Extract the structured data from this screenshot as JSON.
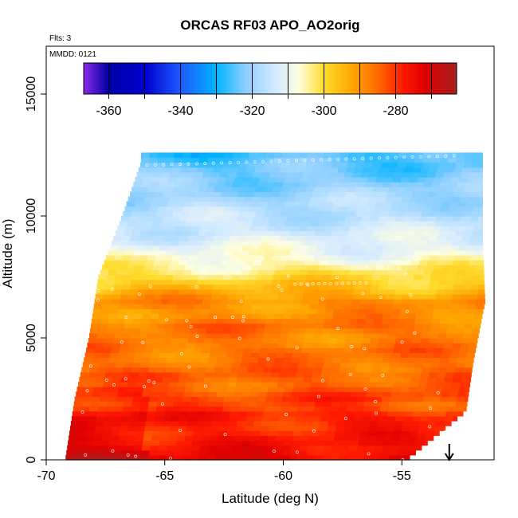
{
  "chart_data": {
    "type": "heatmap",
    "title": "ORCAS RF03 APO_AO2orig",
    "xlabel": "Latitude (deg N)",
    "ylabel": "Altitude (m)",
    "xlim": [
      -70,
      -50
    ],
    "ylim": [
      0,
      16500
    ],
    "x_ticks": [
      -70,
      -65,
      -60,
      -55
    ],
    "y_ticks": [
      0,
      5000,
      10000,
      15000
    ],
    "notes": {
      "flights": "Flts: 3",
      "date": "MMDD: 0121"
    },
    "colorbar": {
      "range": [
        -367,
        -263
      ],
      "ticks": [
        -360,
        -340,
        -320,
        -300,
        -280
      ],
      "breaks": [
        -360,
        -350,
        -340,
        -330,
        -320,
        -310,
        -300,
        -290,
        -280,
        -270
      ],
      "stops": [
        {
          "v": -367,
          "c": "#8a2be2"
        },
        {
          "v": -360,
          "c": "#0000a8"
        },
        {
          "v": -350,
          "c": "#0000cd"
        },
        {
          "v": -340,
          "c": "#1e5aff"
        },
        {
          "v": -330,
          "c": "#00b4ff"
        },
        {
          "v": -322,
          "c": "#8ccfff"
        },
        {
          "v": -313,
          "c": "#d6ebff"
        },
        {
          "v": -307,
          "c": "#ffffe0"
        },
        {
          "v": -300,
          "c": "#ffdc2e"
        },
        {
          "v": -292,
          "c": "#ffa500"
        },
        {
          "v": -285,
          "c": "#ff6a00"
        },
        {
          "v": -278,
          "c": "#ff1a00"
        },
        {
          "v": -272,
          "c": "#e00000"
        },
        {
          "v": -263,
          "c": "#a52020"
        }
      ]
    },
    "profile_fields": [
      {
        "alt": 0,
        "value": -272
      },
      {
        "alt": 400,
        "value": -276
      },
      {
        "alt": 800,
        "value": -277
      },
      {
        "alt": 1300,
        "value": -279
      },
      {
        "alt": 1800,
        "value": -277
      },
      {
        "alt": 2200,
        "value": -283
      },
      {
        "alt": 2600,
        "value": -281
      },
      {
        "alt": 3000,
        "value": -285
      },
      {
        "alt": 3500,
        "value": -284
      },
      {
        "alt": 4000,
        "value": -287
      },
      {
        "alt": 4500,
        "value": -286
      },
      {
        "alt": 5000,
        "value": -288
      },
      {
        "alt": 5500,
        "value": -286
      },
      {
        "alt": 6000,
        "value": -290
      },
      {
        "alt": 6500,
        "value": -289
      },
      {
        "alt": 7000,
        "value": -295
      },
      {
        "alt": 7500,
        "value": -300
      },
      {
        "alt": 8000,
        "value": -305
      },
      {
        "alt": 8500,
        "value": -309
      },
      {
        "alt": 9000,
        "value": -312
      },
      {
        "alt": 9500,
        "value": -314
      },
      {
        "alt": 10000,
        "value": -316
      },
      {
        "alt": 10500,
        "value": -318
      },
      {
        "alt": 11000,
        "value": -320
      },
      {
        "alt": 11500,
        "value": -322
      },
      {
        "alt": 12000,
        "value": -324
      },
      {
        "alt": 12500,
        "value": -326
      }
    ],
    "data_extent": {
      "lat_left_by_alt": [
        {
          "alt": 0,
          "lat": -69.2
        },
        {
          "alt": 2500,
          "lat": -68.8
        },
        {
          "alt": 5000,
          "lat": -68.2
        },
        {
          "alt": 7500,
          "lat": -67.8
        },
        {
          "alt": 10000,
          "lat": -66.8
        },
        {
          "alt": 12200,
          "lat": -66.0
        }
      ],
      "lat_right_by_alt": [
        {
          "alt": 0,
          "lat": -54.8
        },
        {
          "alt": 2000,
          "lat": -52.3
        },
        {
          "alt": 4000,
          "lat": -52.0
        },
        {
          "alt": 6500,
          "lat": -51.5
        },
        {
          "alt": 9000,
          "lat": -51.6
        },
        {
          "alt": 12600,
          "lat": -51.6
        }
      ],
      "top_alt": 12600
    },
    "marker_arrow_lat": -53.0
  }
}
